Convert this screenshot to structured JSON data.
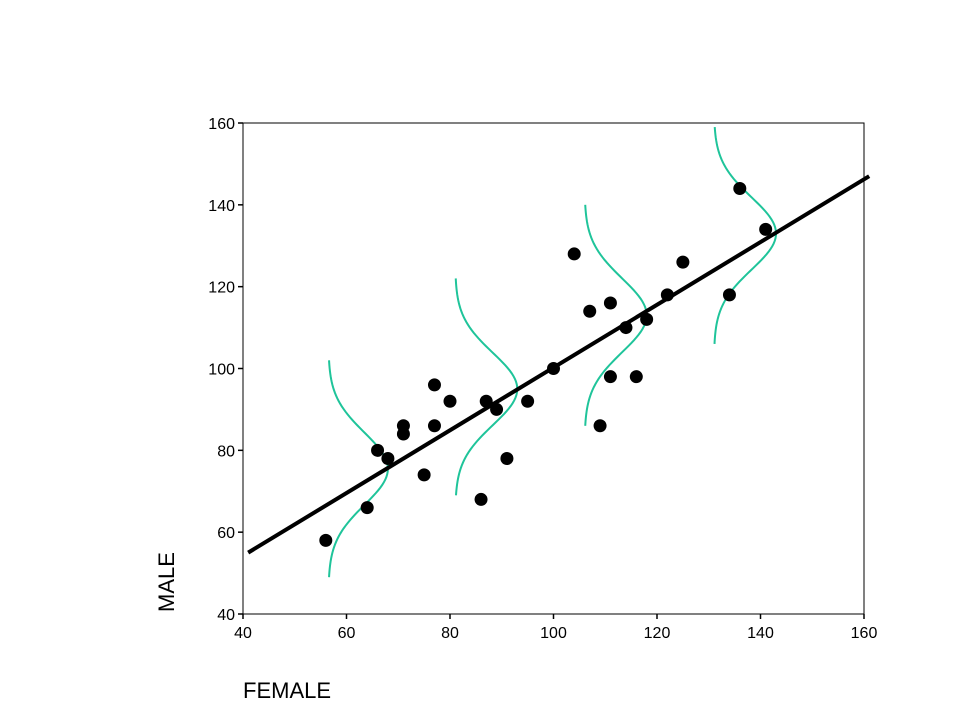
{
  "chart_data": {
    "type": "scatter",
    "title": "",
    "xlabel": "FEMALE",
    "ylabel": "MALE",
    "xlim": [
      40,
      160
    ],
    "ylim": [
      40,
      160
    ],
    "xticks": [
      40,
      60,
      80,
      100,
      120,
      140,
      160
    ],
    "yticks": [
      40,
      60,
      80,
      100,
      120,
      140,
      160
    ],
    "grid": false,
    "legend": "none",
    "points": [
      {
        "x": 56,
        "y": 58
      },
      {
        "x": 64,
        "y": 66
      },
      {
        "x": 66,
        "y": 80
      },
      {
        "x": 68,
        "y": 78
      },
      {
        "x": 71,
        "y": 84
      },
      {
        "x": 71,
        "y": 86
      },
      {
        "x": 75,
        "y": 74
      },
      {
        "x": 77,
        "y": 86
      },
      {
        "x": 77,
        "y": 96
      },
      {
        "x": 80,
        "y": 92
      },
      {
        "x": 86,
        "y": 68
      },
      {
        "x": 87,
        "y": 92
      },
      {
        "x": 89,
        "y": 90
      },
      {
        "x": 91,
        "y": 78
      },
      {
        "x": 95,
        "y": 92
      },
      {
        "x": 100,
        "y": 100
      },
      {
        "x": 104,
        "y": 128
      },
      {
        "x": 107,
        "y": 114
      },
      {
        "x": 109,
        "y": 86
      },
      {
        "x": 111,
        "y": 98
      },
      {
        "x": 111,
        "y": 116
      },
      {
        "x": 114,
        "y": 110
      },
      {
        "x": 116,
        "y": 98
      },
      {
        "x": 118,
        "y": 112
      },
      {
        "x": 122,
        "y": 118
      },
      {
        "x": 125,
        "y": 126
      },
      {
        "x": 134,
        "y": 118
      },
      {
        "x": 136,
        "y": 144
      },
      {
        "x": 141,
        "y": 134
      }
    ],
    "regression_line": {
      "x": [
        41,
        161
      ],
      "y": [
        55,
        147
      ]
    },
    "normal_curves": [
      {
        "center_x": 68,
        "baseline_x": 56.5,
        "y_mean": 75.5,
        "y_range": [
          49,
          102
        ]
      },
      {
        "center_x": 93,
        "baseline_x": 81,
        "y_mean": 95,
        "y_range": [
          69,
          122
        ]
      },
      {
        "center_x": 118,
        "baseline_x": 106,
        "y_mean": 113,
        "y_range": [
          86,
          140
        ]
      },
      {
        "center_x": 143,
        "baseline_x": 131,
        "y_mean": 133,
        "y_range": [
          106,
          159
        ]
      }
    ],
    "colors": {
      "points": "#000000",
      "regression_line": "#000000",
      "normal_curves": "#1fc49a",
      "axes": "#000000"
    }
  }
}
